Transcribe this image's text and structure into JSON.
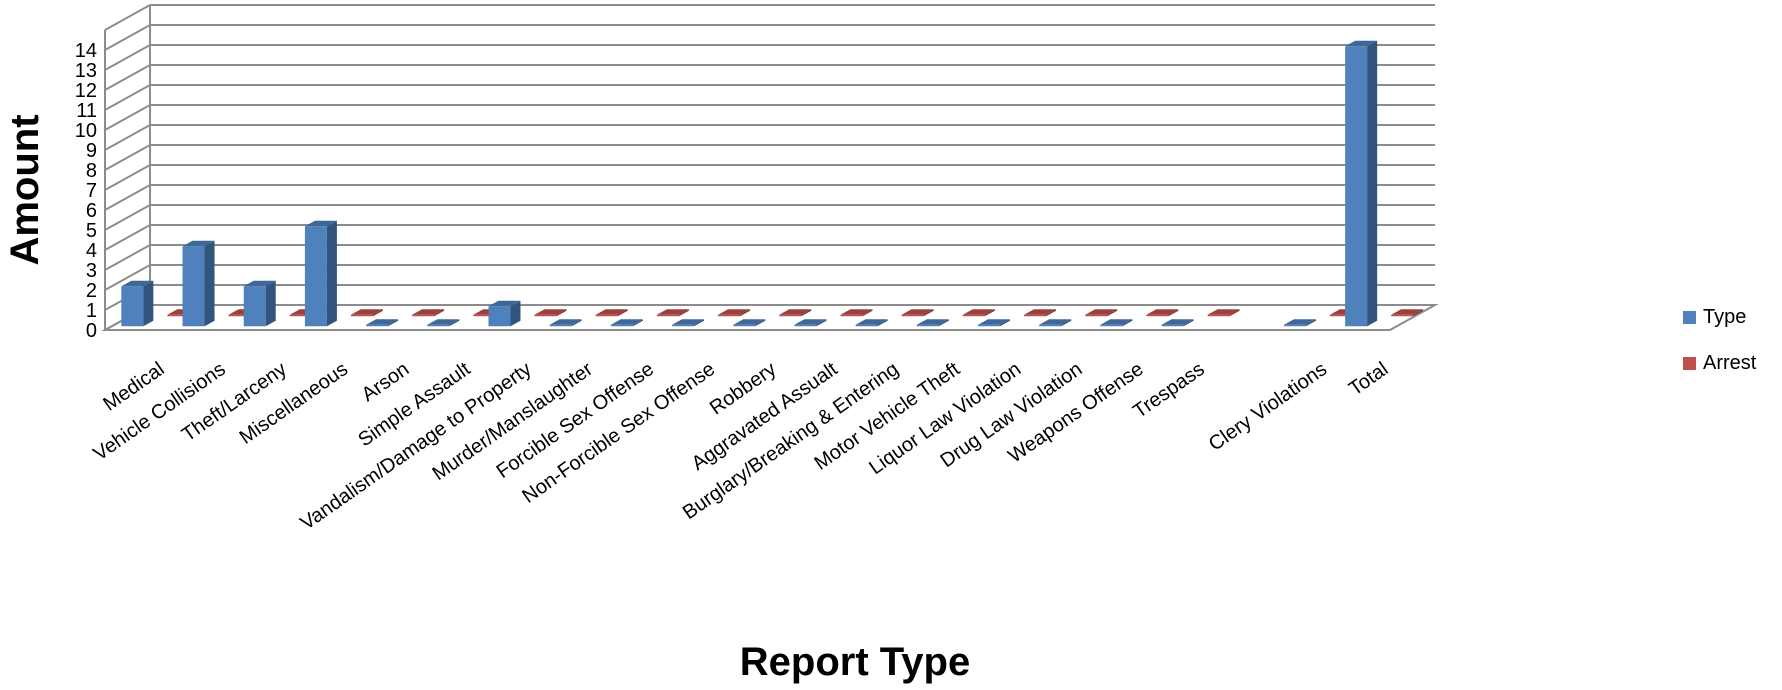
{
  "chart_data": {
    "type": "bar",
    "title": "",
    "xlabel": "Report Type",
    "ylabel": "Amount",
    "ylim": [
      0,
      14
    ],
    "y_ticks": [
      0,
      1,
      2,
      3,
      4,
      5,
      6,
      7,
      8,
      9,
      10,
      11,
      12,
      13,
      14
    ],
    "grid": true,
    "three_d": true,
    "legend_position": "right",
    "categories": [
      "Medical",
      "Vehicle Collisions",
      "Theft/Larceny",
      "Miscellaneous",
      "Arson",
      "Simple Assault",
      "Vandalism/Damage to Property",
      "Murder/Manslaughter",
      "Forcible Sex Offense",
      "Non-Forcible Sex Offense",
      "Robbery",
      "Aggravated Assualt",
      "Burglary/Breaking & Entering",
      "Motor Vehicle Theft",
      "Liquor Law Violation",
      "Drug Law Violation",
      "Weapons Offense",
      "Trespass",
      "",
      "Clery Violations",
      "Total"
    ],
    "series": [
      {
        "name": "Type",
        "color": "#4f81bd",
        "values": [
          2,
          4,
          2,
          5,
          0,
          0,
          1,
          0,
          0,
          0,
          0,
          0,
          0,
          0,
          0,
          0,
          0,
          0,
          null,
          0,
          14
        ]
      },
      {
        "name": "Arrest",
        "color": "#c0504d",
        "values": [
          0,
          0,
          0,
          0,
          0,
          0,
          0,
          0,
          0,
          0,
          0,
          0,
          0,
          0,
          0,
          0,
          0,
          0,
          null,
          0,
          0
        ]
      }
    ]
  }
}
